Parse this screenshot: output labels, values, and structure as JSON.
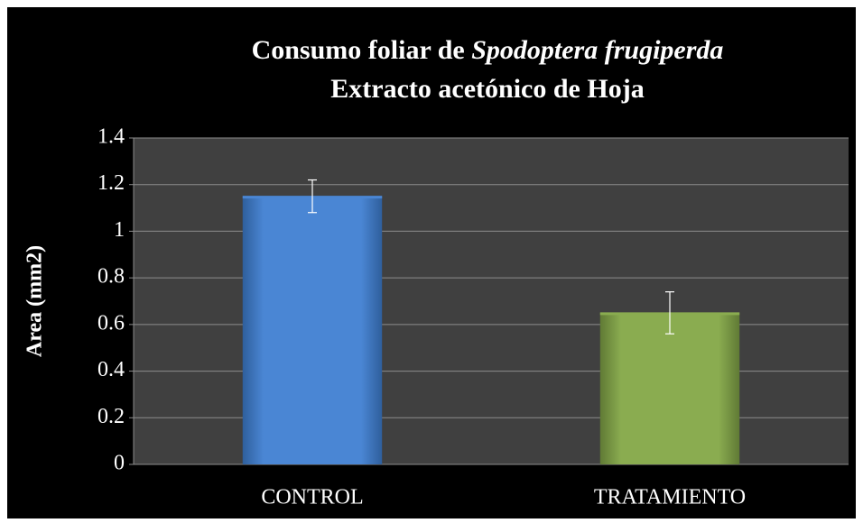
{
  "chart_data": {
    "type": "bar",
    "title": [
      "Consumo foliar de",
      "Spodoptera frugiperda",
      "Extracto acetónico de Hoja"
    ],
    "ylabel": "Area (mm2)",
    "categories": [
      "CONTROL",
      "TRATAMIENTO"
    ],
    "series": [
      {
        "name": "Area",
        "values": [
          1.15,
          0.65
        ],
        "errors": [
          0.07,
          0.09
        ],
        "colors": [
          "#4a86d4",
          "#8aac50"
        ]
      }
    ],
    "ylim": [
      0,
      1.4
    ],
    "yticks": [
      0,
      0.2,
      0.4,
      0.6,
      0.8,
      1,
      1.2,
      1.4
    ],
    "grid": true
  }
}
